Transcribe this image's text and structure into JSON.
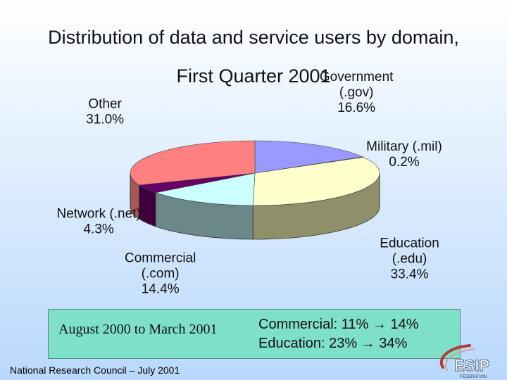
{
  "title": {
    "line1": "Distribution of data and service users by domain,",
    "line2": "First Quarter 2001"
  },
  "chart_data": {
    "type": "pie",
    "title": "Distribution of data and service users by domain, First Quarter 2001",
    "slices": [
      {
        "label_lines": [
          "Government",
          "(.gov)"
        ],
        "value": 16.6,
        "value_label": "16.6%",
        "top_color": "#9999ff",
        "side_color": "#6f6fbf"
      },
      {
        "label_lines": [
          "Military (.mil)"
        ],
        "value": 0.2,
        "value_label": "0.2%",
        "top_color": "#993366",
        "side_color": "#6e2449"
      },
      {
        "label_lines": [
          "Education",
          "(.edu)"
        ],
        "value": 33.4,
        "value_label": "33.4%",
        "top_color": "#ffffcc",
        "side_color": "#8f8f6a"
      },
      {
        "label_lines": [
          "Commercial",
          "(.com)"
        ],
        "value": 14.4,
        "value_label": "14.4%",
        "top_color": "#ccffff",
        "side_color": "#6b8788"
      },
      {
        "label_lines": [
          "Network (.net)"
        ],
        "value": 4.3,
        "value_label": "4.3%",
        "top_color": "#660066",
        "side_color": "#3d003d"
      },
      {
        "label_lines": [
          "Other"
        ],
        "value": 31.0,
        "value_label": "31.0%",
        "top_color": "#ff8080",
        "side_color": "#a85757"
      }
    ]
  },
  "summary": {
    "range": "August 2000 to March 2001",
    "lines": [
      "Commercial: 11% → 14%",
      "Education: 23% → 34%"
    ]
  },
  "footer": {
    "credit": "National Research Council – July 2001"
  },
  "logo": {
    "name": "esip-logo",
    "text": "ESIP",
    "subtext": "FEDERATION"
  }
}
